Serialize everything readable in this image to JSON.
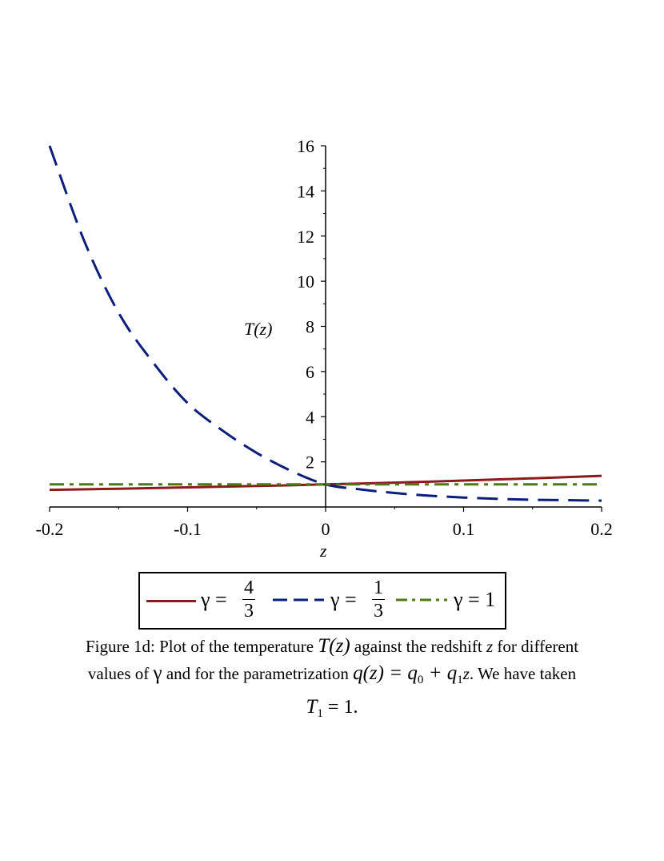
{
  "chart_data": {
    "type": "line",
    "xlabel": "z",
    "ylabel": "T(z)",
    "xlim": [
      -0.2,
      0.2
    ],
    "ylim": [
      0,
      16
    ],
    "x_ticks": [
      "-0.2",
      "-0.1",
      "0",
      "0.1",
      "0.2"
    ],
    "x_tick_values": [
      -0.2,
      -0.1,
      0,
      0.1,
      0.2
    ],
    "y_ticks": [
      "2",
      "4",
      "6",
      "8",
      "10",
      "12",
      "14",
      "16"
    ],
    "y_tick_values": [
      2,
      4,
      6,
      8,
      10,
      12,
      14,
      16
    ],
    "grid": false,
    "legend_position": "bottom",
    "series": [
      {
        "name": "γ = 4/3",
        "style": "solid",
        "color": "#8b1a1a",
        "x": [
          -0.2,
          -0.15,
          -0.1,
          -0.05,
          0,
          0.05,
          0.1,
          0.15,
          0.2
        ],
        "y": [
          0.76,
          0.81,
          0.87,
          0.93,
          1.0,
          1.08,
          1.17,
          1.27,
          1.38
        ]
      },
      {
        "name": "γ = 1/3",
        "style": "dashed",
        "color": "#0a1e7a",
        "x": [
          -0.2,
          -0.175,
          -0.15,
          -0.125,
          -0.1,
          -0.075,
          -0.05,
          -0.025,
          0,
          0.025,
          0.05,
          0.075,
          0.1,
          0.125,
          0.15,
          0.175,
          0.2
        ],
        "y": [
          16.0,
          11.8,
          8.6,
          6.4,
          4.6,
          3.4,
          2.4,
          1.6,
          1.0,
          0.78,
          0.62,
          0.5,
          0.42,
          0.36,
          0.32,
          0.3,
          0.28
        ]
      },
      {
        "name": "γ = 1",
        "style": "dashdot",
        "color": "#4a7a10",
        "x": [
          -0.2,
          0.2
        ],
        "y": [
          1.0,
          1.0
        ]
      }
    ]
  },
  "legend": {
    "items": [
      {
        "prefix": "γ =",
        "num": "4",
        "den": "3"
      },
      {
        "prefix": "γ =",
        "num": "1",
        "den": "3"
      },
      {
        "prefix": "γ = 1"
      }
    ]
  },
  "caption": {
    "line1_a": "Figure 1d: Plot of the temperature ",
    "line1_Tz": "T(z)",
    "line1_b": " against the redshift ",
    "line1_z": "z",
    "line1_c": " for different",
    "line2_a": "values of ",
    "line2_gamma": "γ",
    "line2_b": " and for the parametrization ",
    "line2_eq": "q(z) = q",
    "line2_sub0": "0",
    "line2_plus": " + q",
    "line2_sub1": "1",
    "line2_z": "z",
    "line2_c": ". We have taken",
    "line3_T": "T",
    "line3_sub": "1",
    "line3_rest": " = 1."
  }
}
